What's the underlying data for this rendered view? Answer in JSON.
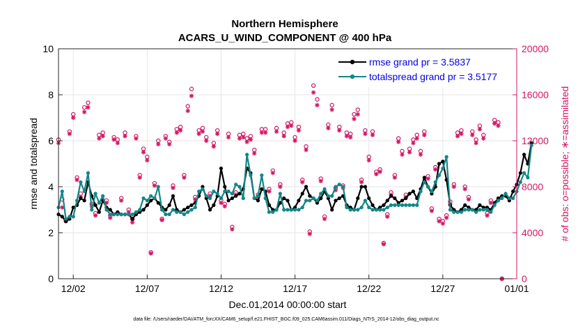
{
  "chart_data": {
    "type": "line",
    "title": "Northern Hemisphere",
    "subtitle": "ACARS_U_WIND_COMPONENT @ 400 hPa",
    "xlabel": "Dec.01,2014 00:00:00 start",
    "ylabel": "rmse and totalspread",
    "y2label": "# of obs: o=possible; ∗=assimilated",
    "footnote": "data file: /Users/raeder/DAI/ATM_forcXX/CAM6_setup/f.e21.FHIST_BGC.f09_025.CAM6assim.011/Diags_NTrS_2014-12/obs_diag_output.nc",
    "xlim": [
      0,
      31
    ],
    "ylim": [
      0,
      10
    ],
    "y2lim": [
      0,
      20000
    ],
    "x_ticks": [
      {
        "x": 1,
        "label": "12/02"
      },
      {
        "x": 6,
        "label": "12/07"
      },
      {
        "x": 11,
        "label": "12/12"
      },
      {
        "x": 16,
        "label": "12/17"
      },
      {
        "x": 21,
        "label": "12/22"
      },
      {
        "x": 26,
        "label": "12/27"
      },
      {
        "x": 31,
        "label": "01/01"
      }
    ],
    "y_ticks": [
      0,
      2,
      4,
      6,
      8,
      10
    ],
    "y2_ticks": [
      {
        "value": 0,
        "label": "0"
      },
      {
        "value": 4000,
        "label": "4000"
      },
      {
        "value": 8000,
        "label": "8000"
      },
      {
        "value": 12000,
        "label": "12000"
      },
      {
        "value": 16000,
        "label": "16000"
      },
      {
        "value": 20000,
        "label": "20000"
      }
    ],
    "legend_position": "top-right",
    "step_days": 0.25,
    "series": [
      {
        "name": "rmse",
        "legend": "rmse grand pr = 3.5837",
        "color": "#000000",
        "axis": "left",
        "values": [
          2.8,
          2.7,
          2.5,
          2.6,
          3.1,
          3.2,
          3.5,
          3.4,
          4.2,
          3.6,
          3.2,
          2.9,
          3.4,
          3.1,
          3.0,
          2.8,
          2.9,
          2.8,
          2.8,
          2.8,
          2.6,
          2.8,
          2.9,
          3.0,
          3.2,
          3.4,
          3.5,
          3.3,
          3.1,
          3.0,
          3.2,
          3.6,
          3.0,
          2.9,
          3.0,
          3.1,
          3.2,
          3.3,
          3.6,
          4.0,
          3.5,
          3.0,
          3.2,
          3.6,
          4.8,
          4.0,
          3.4,
          3.5,
          3.6,
          3.7,
          3.9,
          4.8,
          4.6,
          3.5,
          3.4,
          3.9,
          3.8,
          3.2,
          3.0,
          3.0,
          3.3,
          3.5,
          3.4,
          3.0,
          3.1,
          3.4,
          3.7,
          4.0,
          3.6,
          3.5,
          3.3,
          3.5,
          3.8,
          3.5,
          3.0,
          3.4,
          3.5,
          3.6,
          3.2,
          3.1,
          3.0,
          3.5,
          4.0,
          4.0,
          3.5,
          3.2,
          3.0,
          3.1,
          3.2,
          3.4,
          3.6,
          3.5,
          3.3,
          3.4,
          3.5,
          3.7,
          3.8,
          3.5,
          3.9,
          4.4,
          4.0,
          3.7,
          4.0,
          5.0,
          5.1,
          4.3,
          3.2,
          3.0,
          2.9,
          3.0,
          3.2,
          3.1,
          3.0,
          3.0,
          3.2,
          3.1,
          3.1,
          3.0,
          3.3,
          3.5,
          3.6,
          3.6,
          3.4,
          3.8,
          4.1,
          4.6,
          5.4,
          5.0,
          5.9
        ]
      },
      {
        "name": "totalspread",
        "legend": "totalspread grand pr = 3.5177",
        "color": "#138686",
        "axis": "left",
        "values": [
          3.1,
          3.8,
          2.6,
          2.7,
          2.7,
          3.4,
          4.2,
          3.8,
          4.6,
          3.0,
          3.7,
          3.3,
          3.6,
          3.0,
          2.8,
          2.8,
          2.8,
          2.8,
          2.8,
          2.8,
          2.8,
          2.9,
          3.0,
          3.5,
          3.4,
          3.6,
          3.5,
          4.0,
          3.0,
          2.8,
          2.8,
          3.0,
          2.9,
          2.9,
          2.8,
          2.9,
          3.0,
          3.1,
          3.8,
          3.9,
          3.6,
          3.5,
          3.8,
          3.7,
          3.5,
          3.8,
          3.8,
          3.7,
          4.1,
          4.0,
          3.5,
          5.4,
          4.5,
          3.5,
          3.6,
          4.5,
          3.5,
          2.9,
          2.9,
          3.0,
          3.7,
          3.0,
          3.0,
          3.0,
          3.0,
          3.0,
          3.1,
          3.4,
          3.4,
          3.5,
          3.4,
          3.7,
          3.9,
          3.6,
          3.6,
          4.0,
          4.1,
          4.0,
          3.1,
          3.0,
          3.0,
          3.0,
          3.1,
          3.4,
          3.1,
          3.0,
          3.0,
          3.0,
          3.0,
          3.1,
          3.2,
          3.2,
          3.2,
          3.2,
          3.2,
          3.2,
          3.2,
          3.2,
          3.8,
          4.2,
          4.0,
          3.8,
          4.2,
          4.5,
          4.8,
          5.3,
          3.0,
          2.9,
          2.9,
          2.9,
          3.0,
          3.0,
          3.0,
          2.9,
          3.0,
          3.0,
          3.0,
          2.9,
          3.2,
          3.4,
          3.5,
          3.7,
          3.5,
          3.5,
          3.8,
          4.2,
          4.6,
          4.4,
          5.8
        ]
      },
      {
        "name": "possible",
        "legend": "o=possible",
        "color": "#d21663",
        "axis": "right",
        "marker": "circle",
        "values": [
          12100,
          6900,
          5100,
          12800,
          14300,
          8800,
          7400,
          14900,
          15300,
          6500,
          5700,
          12500,
          12700,
          6800,
          5500,
          12300,
          12100,
          7000,
          12700,
          6000,
          5200,
          12400,
          9000,
          11300,
          10600,
          2300,
          8300,
          12000,
          5200,
          12400,
          11900,
          8100,
          13000,
          13200,
          9000,
          15000,
          16500,
          7100,
          12900,
          13100,
          12300,
          7400,
          11800,
          12900,
          6800,
          6500,
          12600,
          4500,
          7500,
          12500,
          12600,
          12200,
          12400,
          11200,
          7300,
          13000,
          13000,
          7800,
          9400,
          13100,
          8200,
          12700,
          13500,
          13600,
          12300,
          13200,
          8600,
          11500,
          4100,
          16800,
          15600,
          8700,
          5400,
          13400,
          15100,
          7900,
          13200,
          8100,
          12700,
          12600,
          14300,
          14700,
          8600,
          12900,
          10600,
          12800,
          9300,
          9500,
          3100,
          5600,
          7500,
          9000,
          12200,
          11100,
          7300,
          11300,
          12100,
          12500,
          11100,
          12800,
          8900,
          6100,
          9700,
          5200,
          5000,
          5500,
          6700,
          8200,
          12700,
          12900,
          8000,
          7100,
          12800,
          12100,
          13300,
          12500,
          5700,
          6800,
          13800,
          13600,
          0
        ]
      },
      {
        "name": "assimilated",
        "legend": "∗=assimilated",
        "color": "#d21663",
        "axis": "right",
        "marker": "asterisk",
        "values": [
          11800,
          6200,
          5000,
          12600,
          14000,
          8600,
          7100,
          14500,
          14900,
          6300,
          5500,
          12200,
          12400,
          6600,
          5300,
          12100,
          11800,
          6800,
          12400,
          5800,
          4900,
          12200,
          8800,
          11000,
          10300,
          2200,
          8100,
          11700,
          5100,
          12200,
          11700,
          7900,
          12700,
          12900,
          8800,
          14600,
          15900,
          6900,
          12600,
          12800,
          12000,
          7200,
          11500,
          12600,
          6600,
          6300,
          12300,
          4300,
          7300,
          12200,
          12300,
          11900,
          12100,
          10900,
          7100,
          12700,
          12700,
          7600,
          9200,
          12800,
          8000,
          12400,
          13200,
          13300,
          12000,
          12900,
          8400,
          11200,
          3900,
          16200,
          15100,
          8500,
          5200,
          13100,
          14700,
          7700,
          12900,
          7900,
          12400,
          12300,
          13900,
          14300,
          8400,
          12600,
          10300,
          12500,
          9100,
          9300,
          3000,
          5400,
          7300,
          8800,
          11900,
          10800,
          7100,
          11000,
          11800,
          12200,
          10800,
          12500,
          8700,
          5900,
          9500,
          5000,
          4800,
          5300,
          6500,
          8000,
          12400,
          12600,
          7800,
          6900,
          12500,
          11800,
          13000,
          12200,
          5500,
          6600,
          13500,
          13300,
          0
        ]
      }
    ]
  }
}
